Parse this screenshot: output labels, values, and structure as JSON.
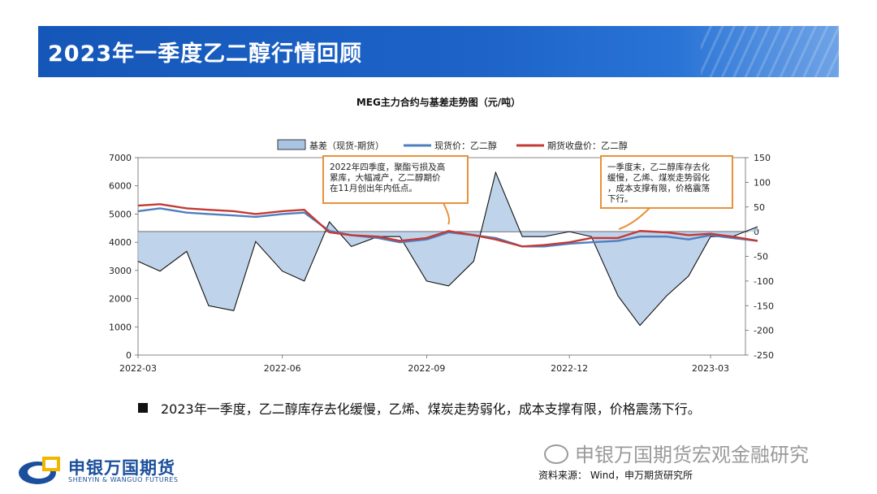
{
  "page": {
    "title": "2023年一季度乙二醇行情回顾",
    "conclusion": "2023年一季度，乙二醇库存去化缓慢，乙烯、煤炭走势弱化，成本支撑有限，价格震荡下行。",
    "source": "资料来源：  Wind，申万期货研究所",
    "watermark": "申银万国期货宏观金融研究",
    "logo_cn": "申银万国期货",
    "logo_en": "SHENYIN & WANGUO FUTURES"
  },
  "colors": {
    "banner": "#1d63c8",
    "spot": "#4f7fbf",
    "futures": "#c43a35",
    "basis_fill": "#a9c4e3",
    "basis_line": "#111111",
    "annotation_border": "#e8913a"
  },
  "chart_data": {
    "type": "line",
    "title": "MEG主力合约与基差走势图（元/吨）",
    "x_ticks": [
      "2022-03",
      "2022-06",
      "2022-09",
      "2022-12",
      "2023-03"
    ],
    "y_left": {
      "ticks": [
        0,
        1000,
        2000,
        3000,
        4000,
        5000,
        6000,
        7000
      ],
      "range": [
        0,
        7000
      ]
    },
    "y_right": {
      "ticks": [
        150,
        100,
        50,
        0,
        -50,
        -100,
        -150,
        -200,
        -250
      ],
      "range": [
        -250,
        150
      ]
    },
    "legend": [
      "基差（现货-期货）",
      "现货价：乙二醇",
      "期货收盘价：乙二醇"
    ],
    "legend_position": "top",
    "x_dates": [
      "2022-03-01",
      "2022-03-15",
      "2022-04-01",
      "2022-04-15",
      "2022-05-01",
      "2022-05-15",
      "2022-06-01",
      "2022-06-15",
      "2022-07-01",
      "2022-07-15",
      "2022-08-01",
      "2022-08-15",
      "2022-09-01",
      "2022-09-15",
      "2022-10-01",
      "2022-10-15",
      "2022-11-01",
      "2022-11-15",
      "2022-12-01",
      "2022-12-15",
      "2023-01-01",
      "2023-01-15",
      "2023-02-01",
      "2023-02-15",
      "2023-03-01",
      "2023-03-15",
      "2023-03-31"
    ],
    "series": [
      {
        "name": "现货价：乙二醇",
        "axis": "left",
        "values": [
          5100,
          5200,
          5050,
          5000,
          4950,
          4900,
          5000,
          5050,
          4400,
          4250,
          4150,
          4000,
          4100,
          4350,
          4250,
          4150,
          3850,
          3850,
          3950,
          4000,
          4050,
          4200,
          4200,
          4100,
          4250,
          4150,
          4050
        ]
      },
      {
        "name": "期货收盘价：乙二醇",
        "axis": "left",
        "values": [
          5300,
          5350,
          5200,
          5150,
          5100,
          5000,
          5100,
          5150,
          4350,
          4250,
          4200,
          4050,
          4150,
          4400,
          4250,
          4100,
          3850,
          3900,
          4000,
          4150,
          4150,
          4400,
          4350,
          4250,
          4300,
          4200,
          4050
        ]
      },
      {
        "name": "基差（现货-期货）",
        "axis": "right",
        "values": [
          -60,
          -80,
          -40,
          -150,
          -160,
          -20,
          -80,
          -100,
          20,
          -30,
          -10,
          -10,
          -100,
          -110,
          -60,
          120,
          -10,
          -10,
          0,
          -10,
          -130,
          -190,
          -130,
          -90,
          -10,
          -10,
          10
        ]
      }
    ],
    "annotations": [
      {
        "text": [
          "2022年四季度，聚酯亏损及高",
          "累库，大幅减产，乙二醇期价",
          "在11月创出年内低点。"
        ],
        "target_date": "2022-11-15"
      },
      {
        "text": [
          "一季度末，乙二醇库存去化",
          "缓慢，乙烯、煤炭走势弱化",
          "，成本支撑有限，价格震荡",
          "下行。"
        ],
        "target_date": "2023-01-05"
      }
    ]
  }
}
